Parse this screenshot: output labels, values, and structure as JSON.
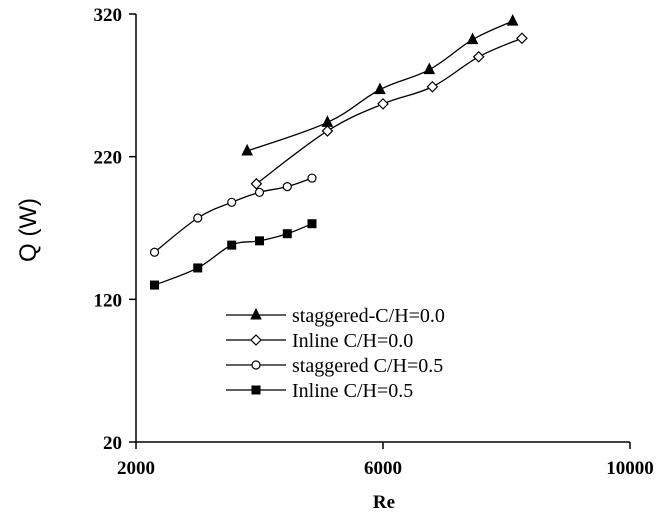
{
  "chart_data": {
    "type": "line",
    "xlabel": "Re",
    "ylabel": "Q (W)",
    "xlim": [
      2000,
      10000
    ],
    "ylim": [
      20,
      320
    ],
    "xticks": [
      2000,
      6000,
      10000
    ],
    "yticks": [
      20,
      120,
      220,
      320
    ],
    "grid": false,
    "legend_position": "bottom-center",
    "series": [
      {
        "name": "staggered-C/H=0.0",
        "marker": "filled-triangle",
        "x": [
          3800,
          5100,
          5950,
          6750,
          7450,
          8100
        ],
        "y": [
          224,
          244,
          267,
          281,
          302,
          315
        ]
      },
      {
        "name": "Inline C/H=0.0",
        "marker": "open-diamond",
        "x": [
          3950,
          5100,
          6000,
          6800,
          7550,
          8250
        ],
        "y": [
          201,
          238,
          257,
          269,
          290,
          303
        ]
      },
      {
        "name": "staggered C/H=0.5",
        "marker": "open-circle",
        "x": [
          2300,
          3000,
          3550,
          4000,
          4450,
          4850
        ],
        "y": [
          153,
          177,
          188,
          195,
          199,
          205
        ]
      },
      {
        "name": "Inline C/H=0.5",
        "marker": "filled-square",
        "x": [
          2300,
          3000,
          3550,
          4000,
          4450,
          4850
        ],
        "y": [
          130,
          142,
          158,
          161,
          166,
          173
        ]
      }
    ]
  }
}
